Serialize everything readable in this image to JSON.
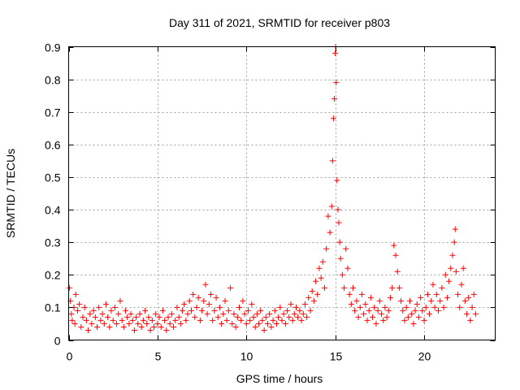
{
  "chart_data": {
    "type": "scatter",
    "title": "Day 311 of 2021, SRMTID for receiver p803",
    "xlabel": "GPS time / hours",
    "ylabel": "SRMTID / TECUs",
    "xlim": [
      0,
      24
    ],
    "ylim": [
      0,
      0.9
    ],
    "xticks": [
      0,
      5,
      10,
      15,
      20
    ],
    "xtick_labels": [
      "0",
      "5",
      "10",
      "15",
      "20"
    ],
    "yticks": [
      0,
      0.1,
      0.2,
      0.3,
      0.4,
      0.5,
      0.6,
      0.7,
      0.8,
      0.9
    ],
    "ytick_labels": [
      "0",
      "0.1",
      "0.2",
      "0.3",
      "0.4",
      "0.5",
      "0.6",
      "0.7",
      "0.8",
      "0.9"
    ],
    "grid": true,
    "marker": "+",
    "color": "#ff0000",
    "series": [
      {
        "name": "SRMTID",
        "points": [
          [
            0.05,
            0.16
          ],
          [
            0.1,
            0.12
          ],
          [
            0.15,
            0.08
          ],
          [
            0.2,
            0.06
          ],
          [
            0.3,
            0.1
          ],
          [
            0.35,
            0.05
          ],
          [
            0.4,
            0.14
          ],
          [
            0.5,
            0.09
          ],
          [
            0.6,
            0.11
          ],
          [
            0.7,
            0.04
          ],
          [
            0.8,
            0.07
          ],
          [
            0.9,
            0.1
          ],
          [
            1.0,
            0.06
          ],
          [
            1.1,
            0.03
          ],
          [
            1.2,
            0.08
          ],
          [
            1.3,
            0.05
          ],
          [
            1.4,
            0.09
          ],
          [
            1.5,
            0.07
          ],
          [
            1.6,
            0.04
          ],
          [
            1.7,
            0.1
          ],
          [
            1.8,
            0.06
          ],
          [
            1.9,
            0.08
          ],
          [
            2.0,
            0.05
          ],
          [
            2.1,
            0.11
          ],
          [
            2.2,
            0.07
          ],
          [
            2.3,
            0.04
          ],
          [
            2.4,
            0.09
          ],
          [
            2.5,
            0.06
          ],
          [
            2.6,
            0.1
          ],
          [
            2.7,
            0.05
          ],
          [
            2.8,
            0.08
          ],
          [
            2.9,
            0.12
          ],
          [
            3.0,
            0.06
          ],
          [
            3.1,
            0.04
          ],
          [
            3.2,
            0.09
          ],
          [
            3.3,
            0.07
          ],
          [
            3.4,
            0.05
          ],
          [
            3.5,
            0.08
          ],
          [
            3.6,
            0.06
          ],
          [
            3.7,
            0.03
          ],
          [
            3.8,
            0.07
          ],
          [
            3.9,
            0.05
          ],
          [
            4.0,
            0.08
          ],
          [
            4.1,
            0.04
          ],
          [
            4.2,
            0.06
          ],
          [
            4.3,
            0.09
          ],
          [
            4.4,
            0.05
          ],
          [
            4.5,
            0.07
          ],
          [
            4.6,
            0.03
          ],
          [
            4.7,
            0.06
          ],
          [
            4.8,
            0.04
          ],
          [
            4.9,
            0.08
          ],
          [
            5.0,
            0.05
          ],
          [
            5.1,
            0.07
          ],
          [
            5.2,
            0.04
          ],
          [
            5.3,
            0.09
          ],
          [
            5.4,
            0.06
          ],
          [
            5.5,
            0.03
          ],
          [
            5.6,
            0.07
          ],
          [
            5.7,
            0.05
          ],
          [
            5.8,
            0.08
          ],
          [
            5.9,
            0.04
          ],
          [
            6.0,
            0.06
          ],
          [
            6.1,
            0.1
          ],
          [
            6.2,
            0.07
          ],
          [
            6.3,
            0.05
          ],
          [
            6.4,
            0.09
          ],
          [
            6.5,
            0.11
          ],
          [
            6.6,
            0.06
          ],
          [
            6.7,
            0.08
          ],
          [
            6.8,
            0.12
          ],
          [
            6.9,
            0.09
          ],
          [
            7.0,
            0.14
          ],
          [
            7.1,
            0.07
          ],
          [
            7.2,
            0.1
          ],
          [
            7.3,
            0.13
          ],
          [
            7.4,
            0.06
          ],
          [
            7.5,
            0.09
          ],
          [
            7.6,
            0.12
          ],
          [
            7.7,
            0.17
          ],
          [
            7.8,
            0.08
          ],
          [
            7.9,
            0.11
          ],
          [
            8.0,
            0.14
          ],
          [
            8.1,
            0.06
          ],
          [
            8.2,
            0.09
          ],
          [
            8.3,
            0.13
          ],
          [
            8.4,
            0.07
          ],
          [
            8.5,
            0.1
          ],
          [
            8.6,
            0.05
          ],
          [
            8.7,
            0.08
          ],
          [
            8.8,
            0.12
          ],
          [
            8.9,
            0.06
          ],
          [
            9.0,
            0.09
          ],
          [
            9.1,
            0.16
          ],
          [
            9.2,
            0.05
          ],
          [
            9.3,
            0.08
          ],
          [
            9.4,
            0.04
          ],
          [
            9.5,
            0.07
          ],
          [
            9.6,
            0.1
          ],
          [
            9.7,
            0.06
          ],
          [
            9.8,
            0.12
          ],
          [
            9.9,
            0.08
          ],
          [
            10.0,
            0.05
          ],
          [
            10.1,
            0.09
          ],
          [
            10.2,
            0.06
          ],
          [
            10.3,
            0.11
          ],
          [
            10.4,
            0.07
          ],
          [
            10.5,
            0.04
          ],
          [
            10.6,
            0.08
          ],
          [
            10.7,
            0.05
          ],
          [
            10.8,
            0.09
          ],
          [
            10.9,
            0.06
          ],
          [
            11.0,
            0.03
          ],
          [
            11.1,
            0.07
          ],
          [
            11.2,
            0.05
          ],
          [
            11.3,
            0.08
          ],
          [
            11.4,
            0.04
          ],
          [
            11.5,
            0.06
          ],
          [
            11.6,
            0.09
          ],
          [
            11.7,
            0.05
          ],
          [
            11.8,
            0.07
          ],
          [
            11.9,
            0.1
          ],
          [
            12.0,
            0.06
          ],
          [
            12.1,
            0.08
          ],
          [
            12.2,
            0.05
          ],
          [
            12.3,
            0.09
          ],
          [
            12.4,
            0.07
          ],
          [
            12.5,
            0.11
          ],
          [
            12.6,
            0.06
          ],
          [
            12.7,
            0.08
          ],
          [
            12.8,
            0.1
          ],
          [
            12.9,
            0.07
          ],
          [
            13.0,
            0.09
          ],
          [
            13.1,
            0.06
          ],
          [
            13.2,
            0.08
          ],
          [
            13.3,
            0.11
          ],
          [
            13.4,
            0.07
          ],
          [
            13.5,
            0.13
          ],
          [
            13.6,
            0.09
          ],
          [
            13.7,
            0.15
          ],
          [
            13.8,
            0.12
          ],
          [
            13.9,
            0.18
          ],
          [
            14.0,
            0.14
          ],
          [
            14.1,
            0.22
          ],
          [
            14.2,
            0.19
          ],
          [
            14.3,
            0.24
          ],
          [
            14.4,
            0.16
          ],
          [
            14.5,
            0.28
          ],
          [
            14.6,
            0.38
          ],
          [
            14.7,
            0.33
          ],
          [
            14.8,
            0.41
          ],
          [
            14.85,
            0.55
          ],
          [
            14.9,
            0.68
          ],
          [
            14.95,
            0.74
          ],
          [
            15.0,
            0.88
          ],
          [
            15.02,
            0.9
          ],
          [
            15.05,
            0.79
          ],
          [
            15.1,
            0.49
          ],
          [
            15.15,
            0.4
          ],
          [
            15.2,
            0.36
          ],
          [
            15.25,
            0.3
          ],
          [
            15.3,
            0.25
          ],
          [
            15.4,
            0.2
          ],
          [
            15.5,
            0.16
          ],
          [
            15.6,
            0.28
          ],
          [
            15.7,
            0.22
          ],
          [
            15.8,
            0.14
          ],
          [
            15.9,
            0.11
          ],
          [
            16.0,
            0.16
          ],
          [
            16.1,
            0.09
          ],
          [
            16.2,
            0.12
          ],
          [
            16.3,
            0.07
          ],
          [
            16.4,
            0.1
          ],
          [
            16.5,
            0.14
          ],
          [
            16.6,
            0.08
          ],
          [
            16.7,
            0.11
          ],
          [
            16.8,
            0.06
          ],
          [
            16.9,
            0.09
          ],
          [
            17.0,
            0.13
          ],
          [
            17.1,
            0.07
          ],
          [
            17.2,
            0.1
          ],
          [
            17.3,
            0.05
          ],
          [
            17.4,
            0.09
          ],
          [
            17.5,
            0.12
          ],
          [
            17.6,
            0.08
          ],
          [
            17.7,
            0.06
          ],
          [
            17.8,
            0.1
          ],
          [
            17.9,
            0.07
          ],
          [
            18.0,
            0.09
          ],
          [
            18.1,
            0.13
          ],
          [
            18.2,
            0.16
          ],
          [
            18.3,
            0.29
          ],
          [
            18.4,
            0.26
          ],
          [
            18.5,
            0.21
          ],
          [
            18.6,
            0.16
          ],
          [
            18.7,
            0.12
          ],
          [
            18.8,
            0.09
          ],
          [
            18.9,
            0.06
          ],
          [
            19.0,
            0.1
          ],
          [
            19.1,
            0.07
          ],
          [
            19.2,
            0.12
          ],
          [
            19.3,
            0.08
          ],
          [
            19.4,
            0.05
          ],
          [
            19.5,
            0.09
          ],
          [
            19.6,
            0.11
          ],
          [
            19.7,
            0.07
          ],
          [
            19.8,
            0.13
          ],
          [
            19.9,
            0.09
          ],
          [
            20.0,
            0.06
          ],
          [
            20.1,
            0.1
          ],
          [
            20.2,
            0.14
          ],
          [
            20.3,
            0.08
          ],
          [
            20.4,
            0.12
          ],
          [
            20.5,
            0.17
          ],
          [
            20.6,
            0.1
          ],
          [
            20.7,
            0.14
          ],
          [
            20.8,
            0.09
          ],
          [
            20.9,
            0.12
          ],
          [
            21.0,
            0.16
          ],
          [
            21.1,
            0.1
          ],
          [
            21.2,
            0.2
          ],
          [
            21.3,
            0.13
          ],
          [
            21.4,
            0.18
          ],
          [
            21.5,
            0.22
          ],
          [
            21.6,
            0.26
          ],
          [
            21.7,
            0.3
          ],
          [
            21.75,
            0.34
          ],
          [
            21.8,
            0.21
          ],
          [
            21.9,
            0.14
          ],
          [
            22.0,
            0.1
          ],
          [
            22.1,
            0.17
          ],
          [
            22.2,
            0.22
          ],
          [
            22.3,
            0.12
          ],
          [
            22.4,
            0.08
          ],
          [
            22.5,
            0.13
          ],
          [
            22.6,
            0.06
          ],
          [
            22.7,
            0.1
          ],
          [
            22.8,
            0.14
          ],
          [
            22.9,
            0.08
          ]
        ]
      }
    ]
  }
}
